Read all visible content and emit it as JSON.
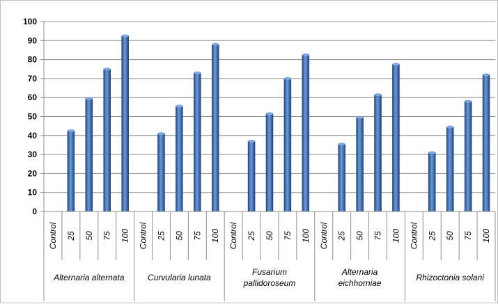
{
  "chart_data": {
    "type": "bar",
    "ylim": [
      0,
      100
    ],
    "yticks": [
      "0",
      "10",
      "20",
      "30",
      "40",
      "50",
      "60",
      "70",
      "80",
      "90",
      "100"
    ],
    "grid": true,
    "legend": "none",
    "bar_color": "#2f5fa8",
    "categories": [
      "Control",
      "25",
      "50",
      "75",
      "100"
    ],
    "groups": [
      {
        "label_lines": [
          "Alternaria alternata"
        ],
        "values": [
          0,
          42.5,
          59.5,
          75,
          92.5
        ]
      },
      {
        "label_lines": [
          "Curvularia lunata"
        ],
        "values": [
          0,
          41,
          55.5,
          73,
          88
        ]
      },
      {
        "label_lines": [
          "Fusarium",
          "pallidoroseum"
        ],
        "values": [
          0,
          37,
          51.5,
          70,
          82.5
        ]
      },
      {
        "label_lines": [
          "Alternaria",
          "eichhorniae"
        ],
        "values": [
          0,
          35.5,
          49.5,
          61.5,
          77.5
        ]
      },
      {
        "label_lines": [
          "Rhizoctonia solani"
        ],
        "values": [
          0,
          31,
          44.5,
          58,
          72
        ]
      }
    ]
  }
}
